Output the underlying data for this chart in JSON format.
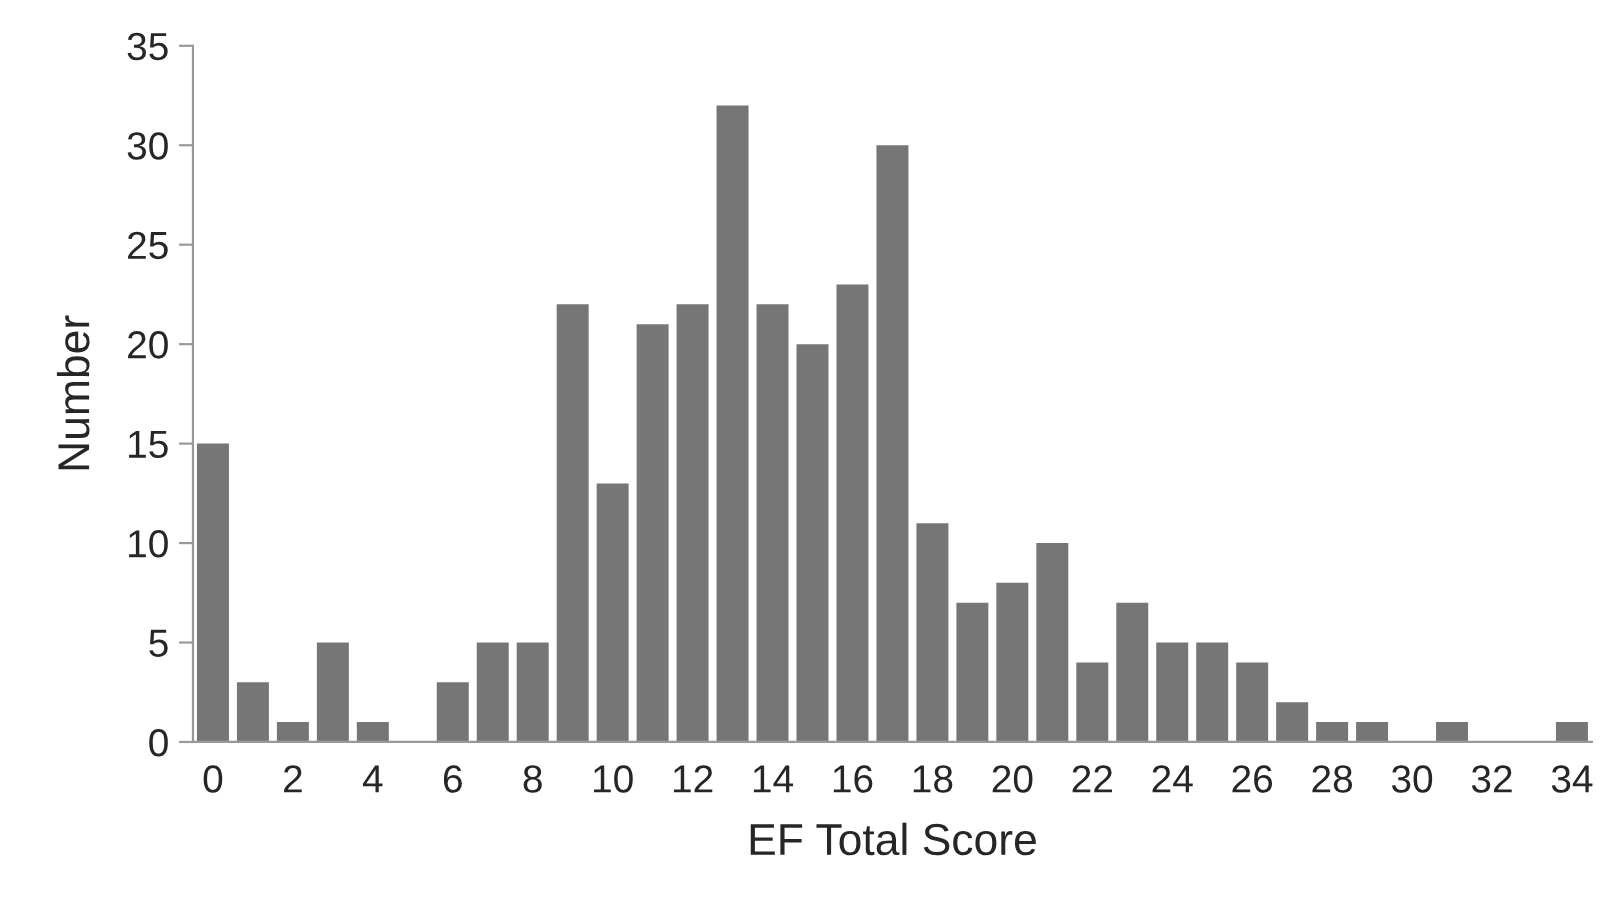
{
  "chart_data": {
    "type": "bar",
    "xlabel": "EF Total Score",
    "ylabel": "Number",
    "categories": [
      "0",
      null,
      "2",
      null,
      "4",
      null,
      "6",
      null,
      "8",
      null,
      "10",
      null,
      "12",
      null,
      "14",
      null,
      "16",
      null,
      "18",
      null,
      "20",
      null,
      "22",
      null,
      "24",
      null,
      "26",
      null,
      "28",
      null,
      "30",
      null,
      "32",
      null,
      "34"
    ],
    "values": [
      15,
      3,
      1,
      5,
      1,
      0,
      3,
      5,
      5,
      22,
      13,
      21,
      22,
      32,
      22,
      20,
      23,
      30,
      11,
      7,
      8,
      10,
      4,
      7,
      5,
      5,
      4,
      2,
      1,
      1,
      0,
      1,
      0,
      0,
      1
    ],
    "color": "#767676",
    "ylim": [
      0,
      35
    ],
    "yticks": [
      0,
      5,
      10,
      15,
      20,
      25,
      30,
      35
    ],
    "grid": false,
    "legend": false
  }
}
